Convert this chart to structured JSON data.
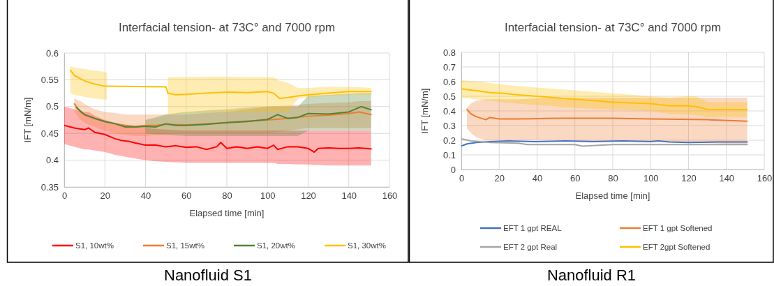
{
  "chart_data": [
    {
      "type": "line",
      "title": "Interfacial tension- at 73C° and 7000 rpm",
      "xlabel": "Elapsed time [min]",
      "ylabel": "IFT [mN/m]",
      "xlim": [
        0,
        160
      ],
      "xticks": [
        0,
        20,
        40,
        60,
        80,
        100,
        120,
        140,
        160
      ],
      "ylim": [
        0.35,
        0.6
      ],
      "yticks": [
        0.35,
        0.4,
        0.45,
        0.5,
        0.55,
        0.6
      ],
      "grid": true,
      "legend": "bottom",
      "annotations": [
        "Nanofluid S1"
      ],
      "series": [
        {
          "name": "S1, 10wt%",
          "color": "#ff0000",
          "x": [
            0,
            5,
            10,
            12,
            15,
            20,
            25,
            28,
            32,
            35,
            40,
            45,
            50,
            55,
            60,
            65,
            70,
            75,
            77,
            80,
            85,
            90,
            95,
            100,
            103,
            105,
            110,
            115,
            120,
            123,
            125,
            130,
            135,
            140,
            145,
            151
          ],
          "values": [
            0.465,
            0.46,
            0.457,
            0.46,
            0.452,
            0.448,
            0.44,
            0.437,
            0.435,
            0.432,
            0.428,
            0.428,
            0.425,
            0.427,
            0.424,
            0.425,
            0.42,
            0.425,
            0.433,
            0.422,
            0.425,
            0.422,
            0.425,
            0.422,
            0.428,
            0.42,
            0.425,
            0.425,
            0.422,
            0.415,
            0.422,
            0.423,
            0.422,
            0.422,
            0.423,
            0.421
          ],
          "lower": [
            0.43,
            0.425,
            0.42,
            0.42,
            0.418,
            0.415,
            0.41,
            0.408,
            0.405,
            0.403,
            0.4,
            0.398,
            0.397,
            0.396,
            0.395,
            0.395,
            0.395,
            0.395,
            0.395,
            0.395,
            0.395,
            0.395,
            0.395,
            0.395,
            0.395,
            0.393,
            0.393,
            0.392,
            0.392,
            0.391,
            0.391,
            0.39,
            0.39,
            0.39,
            0.39,
            0.39
          ],
          "upper": [
            0.5,
            0.495,
            0.49,
            0.49,
            0.483,
            0.475,
            0.47,
            0.467,
            0.465,
            0.463,
            0.46,
            0.458,
            0.457,
            0.456,
            0.455,
            0.455,
            0.455,
            0.455,
            0.455,
            0.455,
            0.455,
            0.455,
            0.455,
            0.455,
            0.455,
            0.455,
            0.455,
            0.455,
            0.455,
            0.455,
            0.455,
            0.455,
            0.455,
            0.455,
            0.455,
            0.455
          ]
        },
        {
          "name": "S1, 15wt%",
          "color": "#ed7d31",
          "x": [
            5,
            8,
            10,
            15,
            20,
            25,
            30,
            35,
            40,
            45,
            50,
            60,
            70,
            80,
            90,
            100,
            110,
            120,
            130,
            140,
            145,
            151
          ],
          "values": [
            0.505,
            0.49,
            0.485,
            0.478,
            0.472,
            0.468,
            0.465,
            0.463,
            0.465,
            0.465,
            0.467,
            0.466,
            0.468,
            0.47,
            0.473,
            0.475,
            0.478,
            0.482,
            0.484,
            0.487,
            0.49,
            0.485
          ],
          "lower": [
            0.49,
            0.475,
            0.47,
            0.462,
            0.455,
            0.45,
            0.447,
            0.445,
            0.445,
            0.447,
            0.449,
            0.45,
            0.45,
            0.45,
            0.45,
            0.45,
            0.455,
            0.46,
            0.46,
            0.46,
            0.46,
            0.46
          ],
          "upper": [
            0.515,
            0.51,
            0.505,
            0.495,
            0.49,
            0.488,
            0.485,
            0.485,
            0.485,
            0.485,
            0.485,
            0.485,
            0.488,
            0.49,
            0.495,
            0.5,
            0.502,
            0.505,
            0.507,
            0.508,
            0.51,
            0.51
          ]
        },
        {
          "name": "S1, 20wt%",
          "color": "#548235",
          "x": [
            6,
            10,
            15,
            20,
            25,
            30,
            35,
            40,
            45,
            50,
            55,
            60,
            70,
            80,
            90,
            100,
            105,
            110,
            115,
            120,
            130,
            140,
            146,
            151
          ],
          "values": [
            0.498,
            0.485,
            0.478,
            0.472,
            0.468,
            0.462,
            0.462,
            0.463,
            0.462,
            0.468,
            0.465,
            0.465,
            0.467,
            0.47,
            0.472,
            0.476,
            0.485,
            0.478,
            0.48,
            0.487,
            0.486,
            0.49,
            0.5,
            0.494
          ],
          "lower": [
            null,
            null,
            null,
            null,
            null,
            null,
            null,
            0.45,
            0.448,
            0.447,
            0.446,
            0.445,
            0.445,
            0.445,
            0.445,
            0.445,
            0.445,
            0.445,
            0.445,
            0.455,
            0.455,
            0.455,
            0.455,
            0.455
          ],
          "upper": [
            null,
            null,
            null,
            null,
            null,
            null,
            null,
            0.475,
            0.48,
            0.485,
            0.488,
            0.49,
            0.493,
            0.495,
            0.498,
            0.5,
            0.5,
            0.5,
            0.5,
            0.52,
            0.522,
            0.524,
            0.525,
            0.525
          ]
        },
        {
          "name": "S1, 30wt%",
          "color": "#ffc000",
          "x": [
            3,
            5,
            10,
            15,
            20,
            21,
            50,
            51,
            55,
            60,
            70,
            80,
            90,
            100,
            103,
            106,
            110,
            115,
            120,
            130,
            140,
            151
          ],
          "values": [
            0.568,
            0.558,
            0.548,
            0.542,
            0.538,
            0.538,
            0.537,
            0.525,
            0.522,
            0.523,
            0.525,
            0.527,
            0.526,
            0.528,
            0.525,
            0.515,
            0.517,
            0.52,
            0.522,
            0.525,
            0.528,
            0.528
          ],
          "lower": [
            0.525,
            0.522,
            0.518,
            0.515,
            0.513,
            0.513,
            null,
            0.485,
            0.486,
            0.487,
            0.488,
            0.489,
            0.49,
            0.49,
            0.49,
            0.49,
            0.49,
            0.515,
            0.517,
            0.52,
            0.522,
            0.522
          ],
          "upper": [
            0.575,
            0.573,
            0.57,
            0.567,
            0.565,
            0.563,
            null,
            0.555,
            0.555,
            0.555,
            0.556,
            0.556,
            0.555,
            0.555,
            0.555,
            0.548,
            0.545,
            0.535,
            0.535,
            0.537,
            0.537,
            0.535
          ]
        }
      ]
    },
    {
      "type": "line",
      "title": "Interfacial tension- at 73C° and 7000 rpm",
      "xlabel": "Elapsed time [min]",
      "ylabel": "IFT [mN/m]",
      "xlim": [
        0,
        160
      ],
      "xticks": [
        0,
        20,
        40,
        60,
        80,
        100,
        120,
        140,
        160
      ],
      "ylim": [
        0,
        0.8
      ],
      "yticks": [
        0,
        0.1,
        0.2,
        0.3,
        0.4,
        0.5,
        0.6,
        0.7,
        0.8
      ],
      "grid": true,
      "legend": "bottom",
      "annotations": [
        "Nanofluid R1"
      ],
      "series": [
        {
          "name": "EFT 1 gpt REAL",
          "color": "#4472c4",
          "x": [
            0,
            3,
            8,
            15,
            25,
            40,
            55,
            70,
            85,
            100,
            104,
            110,
            120,
            135,
            151
          ],
          "values": [
            0.16,
            0.175,
            0.185,
            0.19,
            0.195,
            0.19,
            0.195,
            0.19,
            0.195,
            0.19,
            0.195,
            0.188,
            0.185,
            0.188,
            0.188
          ]
        },
        {
          "name": "EFT 1 gpt Softened",
          "color": "#ed7d31",
          "x": [
            3,
            5,
            8,
            13,
            15,
            20,
            30,
            50,
            80,
            100,
            130,
            151
          ],
          "values": [
            0.41,
            0.38,
            0.36,
            0.34,
            0.355,
            0.345,
            0.345,
            0.35,
            0.35,
            0.345,
            0.34,
            0.33
          ],
          "lower": [
            0.28,
            0.25,
            0.22,
            0.2,
            0.2,
            0.2,
            0.2,
            0.2,
            0.19,
            0.19,
            0.18,
            0.17
          ],
          "upper": [
            0.42,
            0.45,
            0.47,
            0.48,
            0.48,
            0.48,
            0.48,
            0.49,
            0.49,
            0.49,
            0.49,
            0.49
          ]
        },
        {
          "name": "EFT 2 gpt Real",
          "color": "#a5a5a5",
          "x": [
            0,
            5,
            15,
            30,
            35,
            60,
            64,
            80,
            100,
            120,
            151
          ],
          "values": [
            0.21,
            0.195,
            0.185,
            0.18,
            0.17,
            0.17,
            0.16,
            0.17,
            0.17,
            0.17,
            0.17
          ]
        },
        {
          "name": "EFT 2gpt Softened",
          "color": "#ffc000",
          "x": [
            0,
            10,
            15,
            22,
            30,
            40,
            60,
            80,
            100,
            110,
            120,
            124,
            130,
            151
          ],
          "values": [
            0.55,
            0.535,
            0.525,
            0.52,
            0.51,
            0.5,
            0.48,
            0.46,
            0.45,
            0.435,
            0.435,
            0.43,
            0.41,
            0.41
          ],
          "lower": [
            0.49,
            0.475,
            0.47,
            0.46,
            0.45,
            0.44,
            0.42,
            0.41,
            0.4,
            0.38,
            0.375,
            0.37,
            0.36,
            0.36
          ],
          "upper": [
            0.61,
            0.6,
            0.59,
            0.58,
            0.57,
            0.56,
            0.54,
            0.52,
            0.5,
            0.49,
            0.5,
            0.5,
            0.46,
            0.46
          ]
        }
      ]
    }
  ]
}
